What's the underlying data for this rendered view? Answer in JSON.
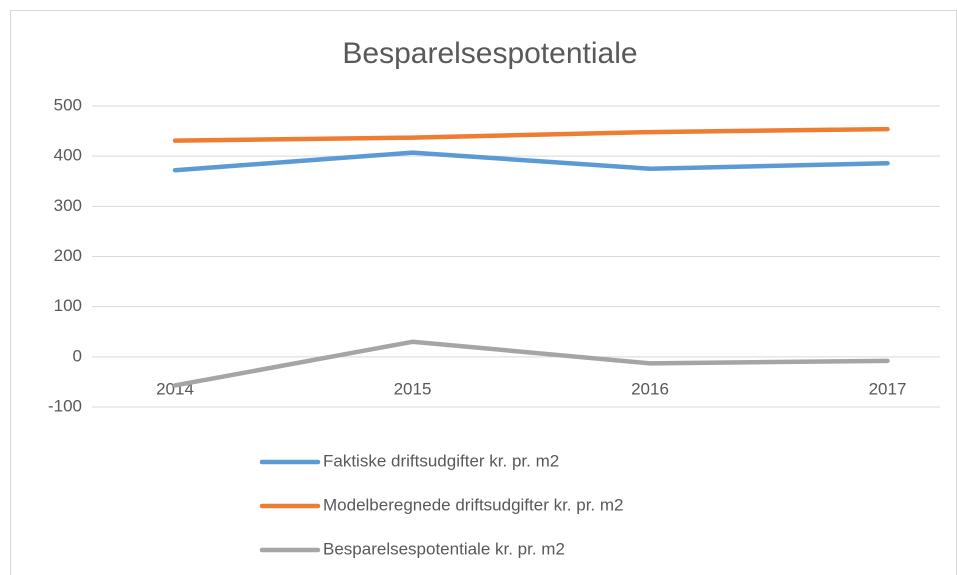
{
  "chart_data": {
    "type": "line",
    "title": "Besparelsespotentiale",
    "categories": [
      "2014",
      "2015",
      "2016",
      "2017"
    ],
    "series": [
      {
        "name": "Faktiske driftsudgifter kr. pr. m2",
        "color": "#5b9bd5",
        "values": [
          372,
          407,
          375,
          386
        ]
      },
      {
        "name": "Modelberegnede driftsudgifter kr. pr. m2",
        "color": "#ed7d31",
        "values": [
          431,
          437,
          448,
          454
        ]
      },
      {
        "name": "Besparelsespotentiale kr. pr. m2",
        "color": "#a5a5a5",
        "values": [
          -57,
          30,
          -13,
          -8
        ]
      }
    ],
    "ylim": [
      -100,
      500
    ],
    "yticks": [
      -100,
      0,
      100,
      200,
      300,
      400,
      500
    ],
    "grid": true,
    "legend": "bottom"
  }
}
